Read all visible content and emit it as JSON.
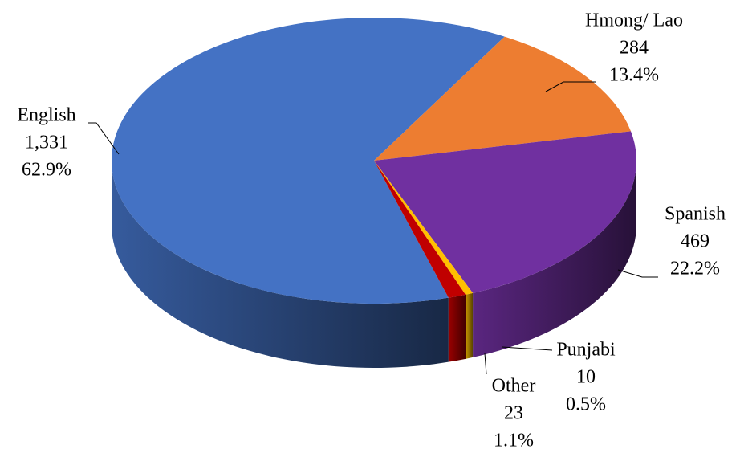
{
  "chart_data": {
    "type": "pie3d",
    "categories": [
      "English",
      "Hmong/ Lao",
      "Spanish",
      "Punjabi",
      "Other"
    ],
    "values": [
      1331,
      284,
      469,
      10,
      23
    ],
    "value_labels": [
      "1,331",
      "284",
      "469",
      "10",
      "23"
    ],
    "percents": [
      62.9,
      13.4,
      22.2,
      0.5,
      1.1
    ],
    "percent_labels": [
      "62.9%",
      "13.4%",
      "22.2%",
      "0.5%",
      "1.1%"
    ],
    "colors": [
      "#4472c4",
      "#ed7d31",
      "#7030a0",
      "#ffc000",
      "#c00000"
    ]
  }
}
